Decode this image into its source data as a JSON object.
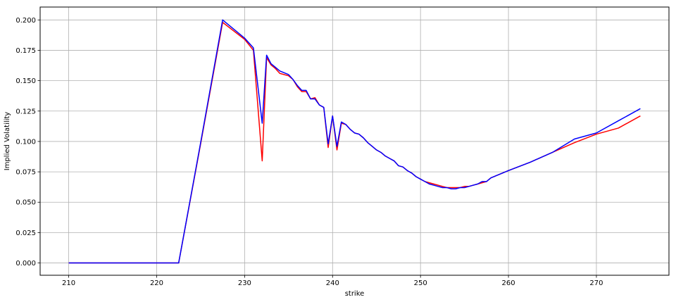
{
  "chart_data": {
    "type": "line",
    "xlabel": "strike",
    "ylabel": "Implied Volatility",
    "xlim": [
      206.75,
      278.25
    ],
    "ylim": [
      -0.0101,
      0.2106
    ],
    "grid": true,
    "xticks": [
      210,
      220,
      230,
      240,
      250,
      260,
      270
    ],
    "yticks": [
      0.0,
      0.025,
      0.05,
      0.075,
      0.1,
      0.125,
      0.15,
      0.175,
      0.2
    ],
    "ytick_labels": [
      "0.000",
      "0.025",
      "0.050",
      "0.075",
      "0.100",
      "0.125",
      "0.150",
      "0.175",
      "0.200"
    ],
    "series": [
      {
        "color": "#ff0000",
        "points": [
          [
            210,
            0
          ],
          [
            215,
            0
          ],
          [
            220,
            0
          ],
          [
            222.5,
            0
          ],
          [
            225,
            0.098
          ],
          [
            227.5,
            0.198
          ],
          [
            230,
            0.184
          ],
          [
            231,
            0.175
          ],
          [
            232,
            0.084
          ],
          [
            232.5,
            0.169
          ],
          [
            233,
            0.163
          ],
          [
            233.5,
            0.16
          ],
          [
            234,
            0.156
          ],
          [
            235,
            0.154
          ],
          [
            235.5,
            0.151
          ],
          [
            236,
            0.145
          ],
          [
            236.5,
            0.141
          ],
          [
            237,
            0.141
          ],
          [
            237.5,
            0.135
          ],
          [
            238,
            0.136
          ],
          [
            238.5,
            0.13
          ],
          [
            239,
            0.128
          ],
          [
            239.5,
            0.095
          ],
          [
            240,
            0.121
          ],
          [
            240.5,
            0.093
          ],
          [
            241,
            0.115
          ],
          [
            241.5,
            0.114
          ],
          [
            242,
            0.11
          ],
          [
            242.5,
            0.107
          ],
          [
            243,
            0.106
          ],
          [
            243.5,
            0.103
          ],
          [
            244,
            0.099
          ],
          [
            244.5,
            0.096
          ],
          [
            245,
            0.093
          ],
          [
            245.5,
            0.091
          ],
          [
            246,
            0.088
          ],
          [
            246.5,
            0.086
          ],
          [
            247,
            0.084
          ],
          [
            247.5,
            0.08
          ],
          [
            248,
            0.079
          ],
          [
            248.5,
            0.076
          ],
          [
            249,
            0.074
          ],
          [
            249.5,
            0.071
          ],
          [
            250,
            0.069
          ],
          [
            250.5,
            0.067
          ],
          [
            251,
            0.066
          ],
          [
            251.5,
            0.065
          ],
          [
            252,
            0.064
          ],
          [
            252.5,
            0.063
          ],
          [
            253,
            0.062
          ],
          [
            253.5,
            0.062
          ],
          [
            254,
            0.062
          ],
          [
            254.5,
            0.062
          ],
          [
            255,
            0.063
          ],
          [
            255.5,
            0.063
          ],
          [
            256,
            0.064
          ],
          [
            256.5,
            0.065
          ],
          [
            257,
            0.066
          ],
          [
            257.5,
            0.067
          ],
          [
            258,
            0.07
          ],
          [
            260,
            0.076
          ],
          [
            262.5,
            0.083
          ],
          [
            265,
            0.091
          ],
          [
            267.5,
            0.099
          ],
          [
            270,
            0.106
          ],
          [
            272.5,
            0.111
          ],
          [
            275,
            0.121
          ]
        ]
      },
      {
        "color": "#0000ff",
        "points": [
          [
            210,
            0
          ],
          [
            215,
            0
          ],
          [
            220,
            0
          ],
          [
            222.5,
            0
          ],
          [
            225,
            0.099
          ],
          [
            227.5,
            0.2
          ],
          [
            230,
            0.185
          ],
          [
            231,
            0.177
          ],
          [
            232,
            0.115
          ],
          [
            232.5,
            0.171
          ],
          [
            233,
            0.164
          ],
          [
            233.5,
            0.161
          ],
          [
            234,
            0.158
          ],
          [
            235,
            0.155
          ],
          [
            235.5,
            0.151
          ],
          [
            236,
            0.146
          ],
          [
            236.5,
            0.142
          ],
          [
            237,
            0.142
          ],
          [
            237.5,
            0.135
          ],
          [
            238,
            0.135
          ],
          [
            238.5,
            0.13
          ],
          [
            239,
            0.128
          ],
          [
            239.5,
            0.098
          ],
          [
            240,
            0.121
          ],
          [
            240.5,
            0.096
          ],
          [
            241,
            0.116
          ],
          [
            241.5,
            0.114
          ],
          [
            242,
            0.11
          ],
          [
            242.5,
            0.107
          ],
          [
            243,
            0.106
          ],
          [
            243.5,
            0.103
          ],
          [
            244,
            0.099
          ],
          [
            244.5,
            0.096
          ],
          [
            245,
            0.093
          ],
          [
            245.5,
            0.091
          ],
          [
            246,
            0.088
          ],
          [
            246.5,
            0.086
          ],
          [
            247,
            0.084
          ],
          [
            247.5,
            0.08
          ],
          [
            248,
            0.079
          ],
          [
            248.5,
            0.076
          ],
          [
            249,
            0.074
          ],
          [
            249.5,
            0.071
          ],
          [
            250,
            0.069
          ],
          [
            250.5,
            0.067
          ],
          [
            251,
            0.065
          ],
          [
            251.5,
            0.064
          ],
          [
            252,
            0.063
          ],
          [
            252.5,
            0.062
          ],
          [
            253,
            0.062
          ],
          [
            253.5,
            0.061
          ],
          [
            254,
            0.061
          ],
          [
            254.5,
            0.062
          ],
          [
            255,
            0.062
          ],
          [
            255.5,
            0.063
          ],
          [
            256,
            0.064
          ],
          [
            256.5,
            0.065
          ],
          [
            257,
            0.067
          ],
          [
            257.5,
            0.067
          ],
          [
            258,
            0.07
          ],
          [
            260,
            0.076
          ],
          [
            262.5,
            0.083
          ],
          [
            265,
            0.091
          ],
          [
            267.5,
            0.102
          ],
          [
            270,
            0.107
          ],
          [
            272.5,
            0.117
          ],
          [
            275,
            0.127
          ]
        ]
      }
    ]
  }
}
